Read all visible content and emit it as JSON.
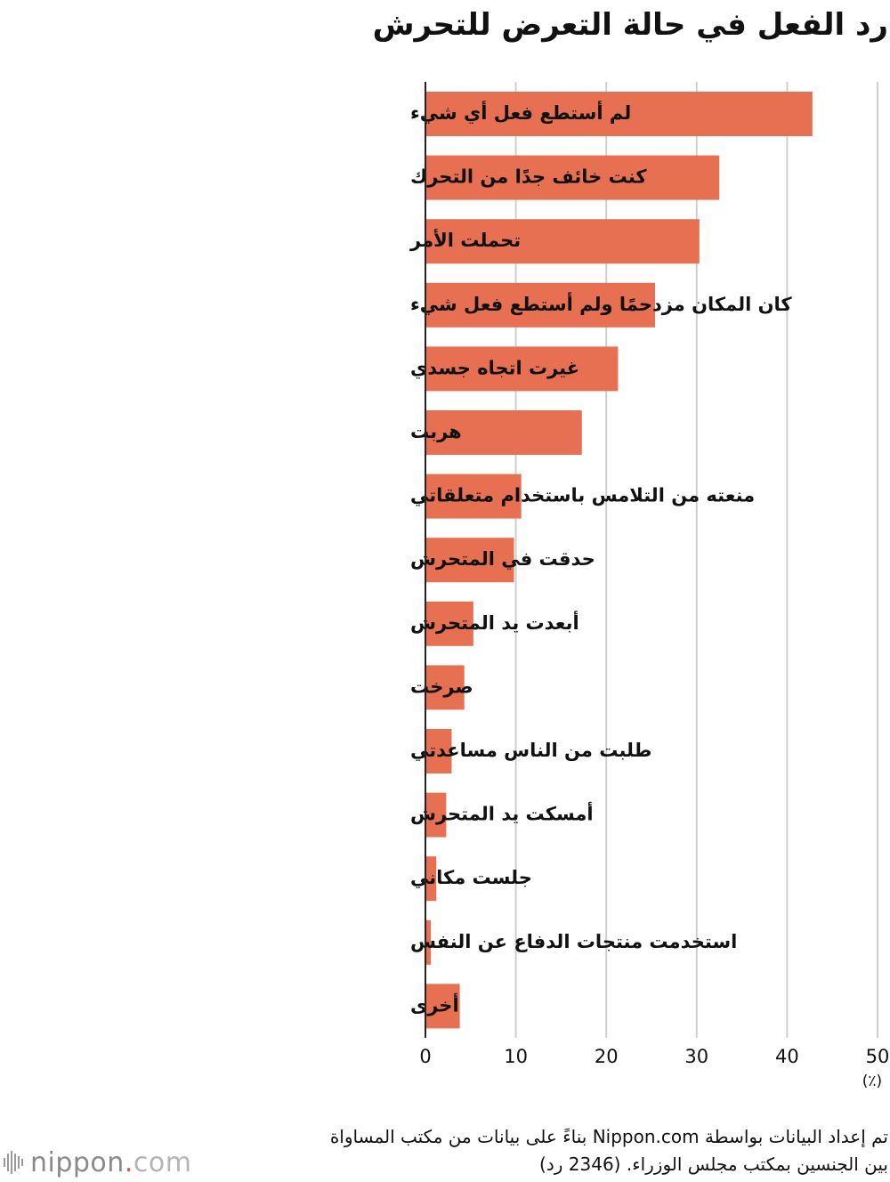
{
  "chart_data": {
    "type": "bar",
    "orientation": "horizontal",
    "title": "رد الفعل في حالة التعرض للتحرش",
    "unit_label": "(٪)",
    "categories": [
      "لم أستطع فعل أي شيء",
      "كنت خائف جدًا من التحرك",
      "تحملت الأمر",
      "كان المكان مزدحمًا ولم أستطع فعل شيء",
      "غيرت اتجاه جسدي",
      "هربت",
      "منعته من التلامس باستخدام متعلقاتي",
      "حدقت في المتحرش",
      "أبعدت يد المتحرش",
      "صرخت",
      "طلبت من الناس مساعدتي",
      "أمسكت يد المتحرش",
      "جلست مكاني",
      "استخدمت منتجات الدفاع عن النفس",
      "أخرى"
    ],
    "values": [
      42.8,
      32.5,
      30.3,
      25.4,
      21.3,
      17.3,
      10.6,
      9.8,
      5.3,
      4.3,
      2.9,
      2.3,
      1.2,
      0.6,
      3.8
    ],
    "xlim": [
      0,
      50
    ],
    "xticks": [
      0,
      10,
      20,
      30,
      40,
      50
    ],
    "grid": true,
    "bar_color": "#e87052",
    "grid_color": "#cfcfcf"
  },
  "source": {
    "line1": "تم إعداد البيانات بواسطة Nippon.com بناءً على بيانات من مكتب المساواة",
    "line2": "بين الجنسين بمكتب مجلس الوزراء. (2346 رد)"
  },
  "logo": {
    "name": "nippon",
    "dot": ".",
    "suffix": "com"
  }
}
